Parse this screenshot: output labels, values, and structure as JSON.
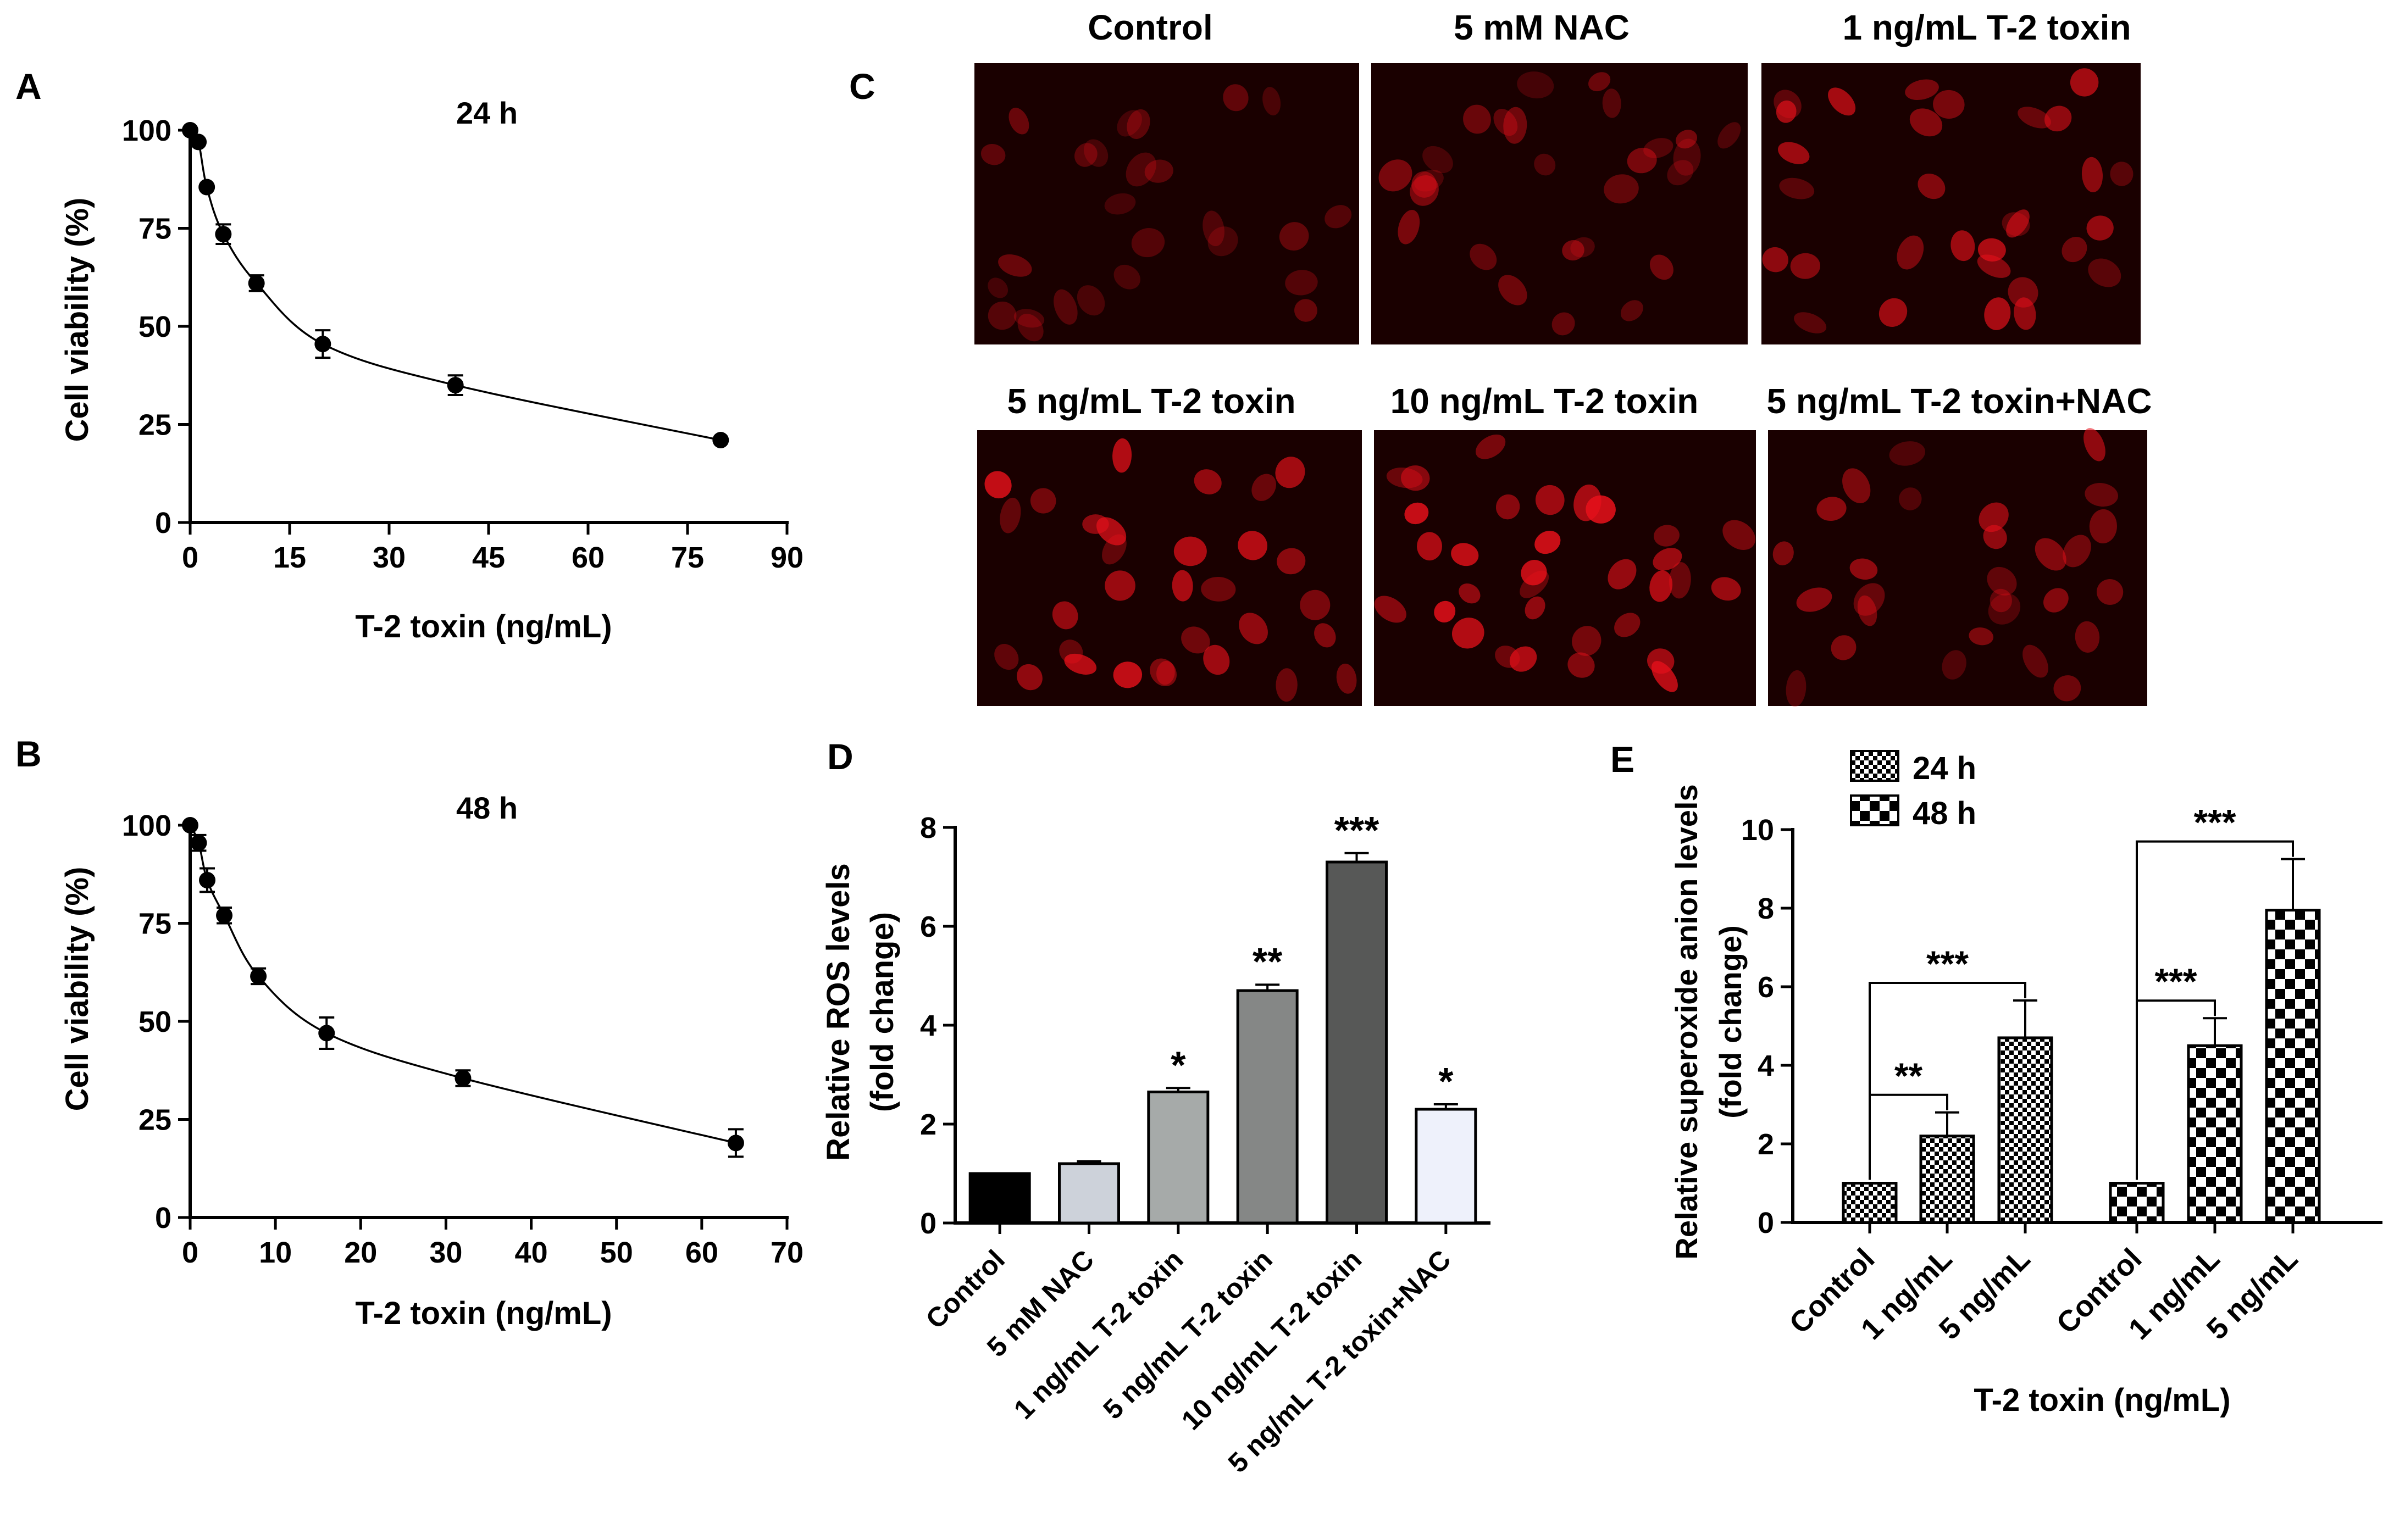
{
  "panel_letters": [
    "A",
    "B",
    "C",
    "D",
    "E"
  ],
  "colors": {
    "cell_bg": "#1a0000",
    "cell_fill": "#e8101a",
    "bar_control": "#000000",
    "bar_nac": "#cdd2da",
    "bar_1": "#a6aaa9",
    "bar_5": "#858786",
    "bar_10": "#575857",
    "bar_nac_toxin": "#eef1fb"
  },
  "panel_c": {
    "labels": [
      "Control",
      "5 mM NAC",
      "1 ng/mL T-2 toxin",
      "5 ng/mL T-2 toxin",
      "10 ng/mL T-2 toxin",
      "5 ng/mL T-2 toxin+NAC"
    ],
    "intensity": [
      0.35,
      0.45,
      0.75,
      0.9,
      1.0,
      0.6
    ]
  },
  "chart_data": [
    {
      "id": "A",
      "type": "line",
      "title": "24 h",
      "xlabel": "T-2 toxin (ng/mL)",
      "ylabel": "Cell viability (%)",
      "xlim": [
        0,
        90
      ],
      "ylim": [
        0,
        100
      ],
      "xticks": [
        0,
        15,
        30,
        45,
        60,
        75,
        90
      ],
      "yticks": [
        0,
        25,
        50,
        75,
        100
      ],
      "x": [
        0,
        1.25,
        2.5,
        5,
        10,
        20,
        40,
        80
      ],
      "y": [
        100,
        97,
        85.5,
        73.5,
        61,
        45.5,
        35,
        21
      ],
      "err": [
        0,
        0,
        0,
        2.5,
        2,
        3.5,
        2.5,
        0
      ]
    },
    {
      "id": "B",
      "type": "line",
      "title": "48 h",
      "xlabel": "T-2 toxin (ng/mL)",
      "ylabel": "Cell viability (%)",
      "xlim": [
        0,
        70
      ],
      "ylim": [
        0,
        100
      ],
      "xticks": [
        0,
        10,
        20,
        30,
        40,
        50,
        60,
        70
      ],
      "yticks": [
        0,
        25,
        50,
        75,
        100
      ],
      "x": [
        0,
        1,
        2,
        4,
        8,
        16,
        32,
        64
      ],
      "y": [
        100,
        95.5,
        86,
        77,
        61.5,
        47,
        35.5,
        19
      ],
      "err": [
        0,
        2,
        3,
        2,
        2,
        4,
        2,
        3.5
      ]
    },
    {
      "id": "D",
      "type": "bar",
      "ylabel_lines": [
        "Relative ROS levels",
        "(fold change)"
      ],
      "ylim": [
        0,
        8
      ],
      "yticks": [
        0,
        2,
        4,
        6,
        8
      ],
      "categories": [
        "Control",
        "5 mM NAC",
        "1 ng/mL T-2 toxin",
        "5 ng/mL T-2 toxin",
        "10 ng/mL T-2 toxin",
        "5 ng/mL T-2 toxin+NAC"
      ],
      "values": [
        1,
        1.2,
        2.65,
        4.7,
        7.3,
        2.3
      ],
      "err": [
        0,
        0.05,
        0.08,
        0.12,
        0.18,
        0.1
      ],
      "significance": [
        "",
        "",
        "*",
        "**",
        "***",
        "*"
      ],
      "color_keys": [
        "bar_control",
        "bar_nac",
        "bar_1",
        "bar_5",
        "bar_10",
        "bar_nac_toxin"
      ]
    },
    {
      "id": "E",
      "type": "bar",
      "ylabel_lines": [
        "Relative superoxide anion levels",
        "(fold change)"
      ],
      "xlabel": "T-2 toxin (ng/mL)",
      "ylim": [
        0,
        10
      ],
      "yticks": [
        0,
        2,
        4,
        6,
        8,
        10
      ],
      "legend": [
        "24 h",
        "48 h"
      ],
      "legend_position": "top-left",
      "groups": [
        {
          "name": "24 h",
          "categories": [
            "Control",
            "1 ng/mL",
            "5 ng/mL"
          ],
          "values": [
            1,
            2.2,
            4.7
          ],
          "err": [
            0,
            0.6,
            0.95
          ]
        },
        {
          "name": "48 h",
          "categories": [
            "Control",
            "1 ng/mL",
            "5 ng/mL"
          ],
          "values": [
            1,
            4.5,
            7.95
          ],
          "err": [
            0,
            0.7,
            1.3
          ]
        }
      ],
      "comparisons": [
        {
          "group": 0,
          "from": 0,
          "to": 1,
          "label": "**"
        },
        {
          "group": 0,
          "from": 0,
          "to": 2,
          "label": "***"
        },
        {
          "group": 1,
          "from": 0,
          "to": 1,
          "label": "***"
        },
        {
          "group": 1,
          "from": 0,
          "to": 2,
          "label": "***"
        }
      ]
    }
  ]
}
